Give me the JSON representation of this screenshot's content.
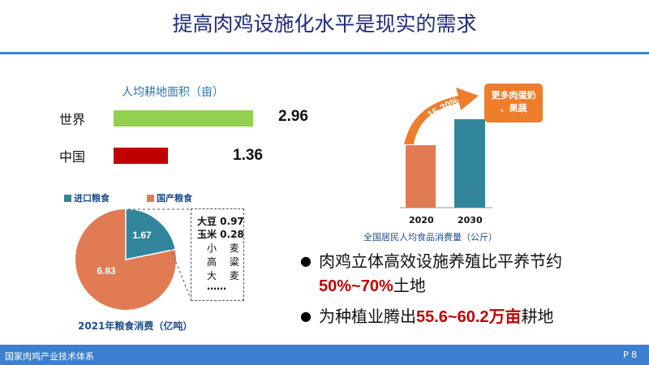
{
  "slide": {
    "title": "提高肉鸡设施化水平是现实的需求",
    "footer_left": "国家肉鸡产业技术体系",
    "footer_right": "P 8"
  },
  "arable_land": {
    "title": "人均耕地面积（亩）",
    "rows": [
      {
        "label": "世界",
        "value": "2.96",
        "color": "#92d050"
      },
      {
        "label": "中国",
        "value": "1.36",
        "color": "#c00000"
      }
    ]
  },
  "grain_pie": {
    "legend": [
      {
        "label": "进口粮食",
        "color": "#31859c"
      },
      {
        "label": "国产粮食",
        "color": "#e07b54"
      }
    ],
    "slice_labels": [
      "1.67",
      "6.83"
    ],
    "caption": "2021年粮食消费（亿吨）",
    "breakdown": {
      "soy": "大豆 0.97",
      "corn": "玉米 0.28",
      "rows": [
        "小 麦",
        "高 粱",
        "大 麦"
      ],
      "ellipsis": "……"
    }
  },
  "food_chart": {
    "caption": "全国居民人均食品消费量（公斤）",
    "years": [
      "2020",
      "2030"
    ],
    "growth_label": "15-20%",
    "callout_line1": "更多肉蛋奶",
    "callout_line2": "、果蔬"
  },
  "bullets": {
    "b1_line1": "肉鸡立体高效设施养殖比平养节约",
    "b1_highlight": "50%~70%",
    "b1_tail": "土地",
    "b2_text": "为种植业腾出",
    "b2_highlight": "55.6~60.2万亩",
    "b2_tail": "耕地"
  },
  "chart_data": [
    {
      "type": "bar",
      "title": "人均耕地面积（亩）",
      "categories": [
        "世界",
        "中国"
      ],
      "values": [
        2.96,
        1.36
      ]
    },
    {
      "type": "pie",
      "title": "2021年粮食消费（亿吨）",
      "categories": [
        "进口粮食",
        "国产粮食"
      ],
      "values": [
        1.67,
        6.83
      ]
    },
    {
      "type": "bar",
      "title": "全国居民人均食品消费量（公斤）",
      "categories": [
        "2020",
        "2030"
      ],
      "values": [
        100,
        117.5
      ],
      "annotation": "15-20%"
    }
  ],
  "colors": {
    "accent_blue": "#3d7fd1",
    "title_navy": "#1f2b7a",
    "highlight_red": "#c00000",
    "orange": "#ee7d2c",
    "teal": "#31859c"
  }
}
